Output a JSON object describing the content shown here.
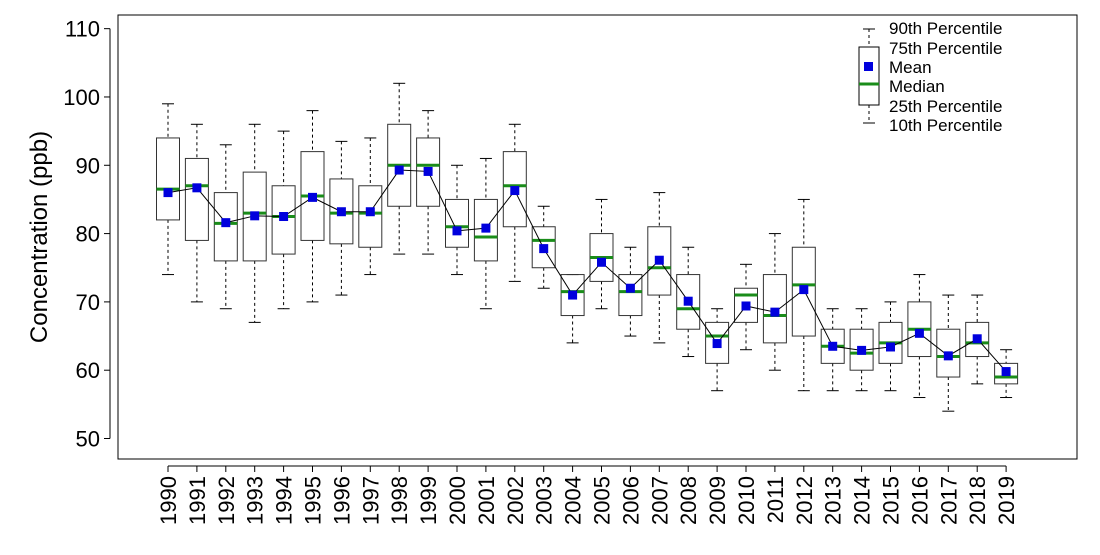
{
  "chart_data": {
    "type": "box",
    "title": "",
    "xlabel": "",
    "ylabel": "Concentration (ppb)",
    "ylim": [
      47,
      112
    ],
    "yticks": [
      50,
      60,
      70,
      80,
      90,
      100,
      110
    ],
    "grid": false,
    "legend_position": "top-right",
    "legend": {
      "p90": "90th Percentile",
      "p75": "75th Percentile",
      "mean": "Mean",
      "median": "Median",
      "p25": "25th Percentile",
      "p10": "10th Percentile"
    },
    "colors": {
      "mean": "#0000dd",
      "median": "#1a8c1a",
      "box": "#333333",
      "line": "#000000"
    },
    "categories": [
      "1990",
      "1991",
      "1992",
      "1993",
      "1994",
      "1995",
      "1996",
      "1997",
      "1998",
      "1999",
      "2000",
      "2001",
      "2002",
      "2003",
      "2004",
      "2005",
      "2006",
      "2007",
      "2008",
      "2009",
      "2010",
      "2011",
      "2012",
      "2013",
      "2014",
      "2015",
      "2016",
      "2017",
      "2018",
      "2019"
    ],
    "p10": [
      74,
      70,
      69,
      67,
      69,
      70,
      71,
      74,
      77,
      77,
      74,
      69,
      73,
      72,
      64,
      69,
      65,
      64,
      62,
      57,
      63,
      60,
      57,
      57,
      57,
      57,
      56,
      54,
      58,
      56
    ],
    "p25": [
      82,
      79,
      76,
      76,
      77,
      79,
      78.5,
      78,
      84,
      84,
      78,
      76,
      81,
      75,
      68,
      73,
      68,
      71,
      66,
      61,
      67,
      64,
      65,
      61,
      60,
      61,
      62,
      59,
      62,
      58
    ],
    "median": [
      86.5,
      87,
      81.5,
      83,
      82.5,
      85.5,
      83,
      83,
      90,
      90,
      81,
      79.5,
      87,
      79,
      71.5,
      76.5,
      71.5,
      75,
      69,
      65,
      71,
      68,
      72.5,
      63.5,
      62.5,
      64,
      66,
      62,
      64,
      59
    ],
    "mean": [
      86,
      86.7,
      81.6,
      82.6,
      82.5,
      85.3,
      83.2,
      83.2,
      89.3,
      89.1,
      80.4,
      80.8,
      86.3,
      77.8,
      71,
      75.8,
      72,
      76.1,
      70.1,
      63.9,
      69.4,
      68.5,
      71.8,
      63.5,
      62.9,
      63.4,
      65.4,
      62.1,
      64.6,
      59.8
    ],
    "p75": [
      94,
      91,
      86,
      89,
      87,
      92,
      88,
      87,
      96,
      94,
      85,
      85,
      92,
      81,
      74,
      80,
      74,
      81,
      74,
      67,
      72,
      74,
      78,
      66,
      66,
      67,
      70,
      66,
      67,
      61
    ],
    "p90": [
      99,
      96,
      93,
      96,
      95,
      98,
      93.5,
      94,
      102,
      98,
      90,
      91,
      96,
      84,
      74,
      85,
      78,
      86,
      78,
      69,
      75.5,
      80,
      85,
      69,
      69,
      70,
      74,
      71,
      71,
      63
    ]
  }
}
